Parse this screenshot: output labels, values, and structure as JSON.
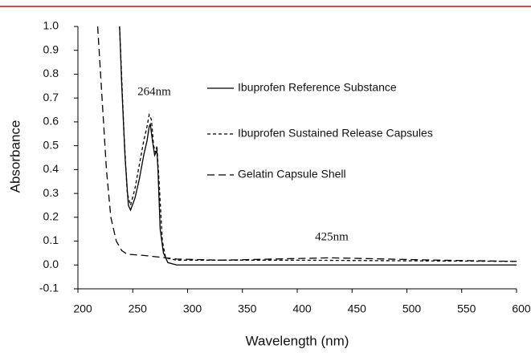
{
  "chart_data": {
    "type": "line",
    "xlabel": "Wavelength (nm)",
    "ylabel": "Absorbance",
    "xlim": [
      200,
      600
    ],
    "ylim": [
      -0.1,
      1.0
    ],
    "xticks": [
      200,
      250,
      300,
      350,
      400,
      450,
      500,
      550,
      600
    ],
    "yticks": [
      -0.1,
      {
        "value": 0,
        "label": "0.0"
      },
      0.1,
      0.2,
      0.3,
      0.4,
      0.5,
      0.6,
      0.7,
      0.8,
      0.9,
      {
        "value": 1,
        "label": "1.0"
      }
    ],
    "annotations": [
      "264nm",
      "425nm"
    ],
    "series": [
      {
        "name": "Ibuprofen Reference Substance",
        "color": "#000000",
        "style": "solid",
        "x": [
          238,
          240,
          243,
          246,
          248,
          252,
          256,
          260,
          263,
          265,
          266,
          268,
          270,
          272,
          273,
          275,
          278,
          282,
          290,
          600
        ],
        "values": [
          1.0,
          0.75,
          0.45,
          0.25,
          0.23,
          0.28,
          0.36,
          0.46,
          0.52,
          0.58,
          0.59,
          0.52,
          0.46,
          0.48,
          0.4,
          0.15,
          0.05,
          0.01,
          0.0,
          0.0
        ]
      },
      {
        "name": "Ibuprofen Sustained Release Capsules",
        "color": "#000000",
        "style": "dotted",
        "x": [
          238,
          242,
          245,
          248,
          252,
          256,
          260,
          263,
          265,
          267,
          269,
          271,
          272,
          274,
          277,
          280,
          290,
          350,
          400,
          600
        ],
        "values": [
          1.0,
          0.55,
          0.3,
          0.25,
          0.32,
          0.42,
          0.52,
          0.58,
          0.63,
          0.61,
          0.5,
          0.47,
          0.5,
          0.35,
          0.1,
          0.03,
          0.02,
          0.02,
          0.02,
          0.015
        ]
      },
      {
        "name": "Gelatin Capsule Shell",
        "color": "#000000",
        "style": "dashed",
        "x": [
          218,
          222,
          226,
          230,
          235,
          240,
          245,
          260,
          270,
          280,
          290,
          330,
          380,
          430,
          480,
          530,
          600
        ],
        "values": [
          1.0,
          0.7,
          0.4,
          0.2,
          0.1,
          0.06,
          0.045,
          0.04,
          0.035,
          0.03,
          0.025,
          0.02,
          0.025,
          0.03,
          0.025,
          0.02,
          0.015
        ]
      }
    ]
  }
}
